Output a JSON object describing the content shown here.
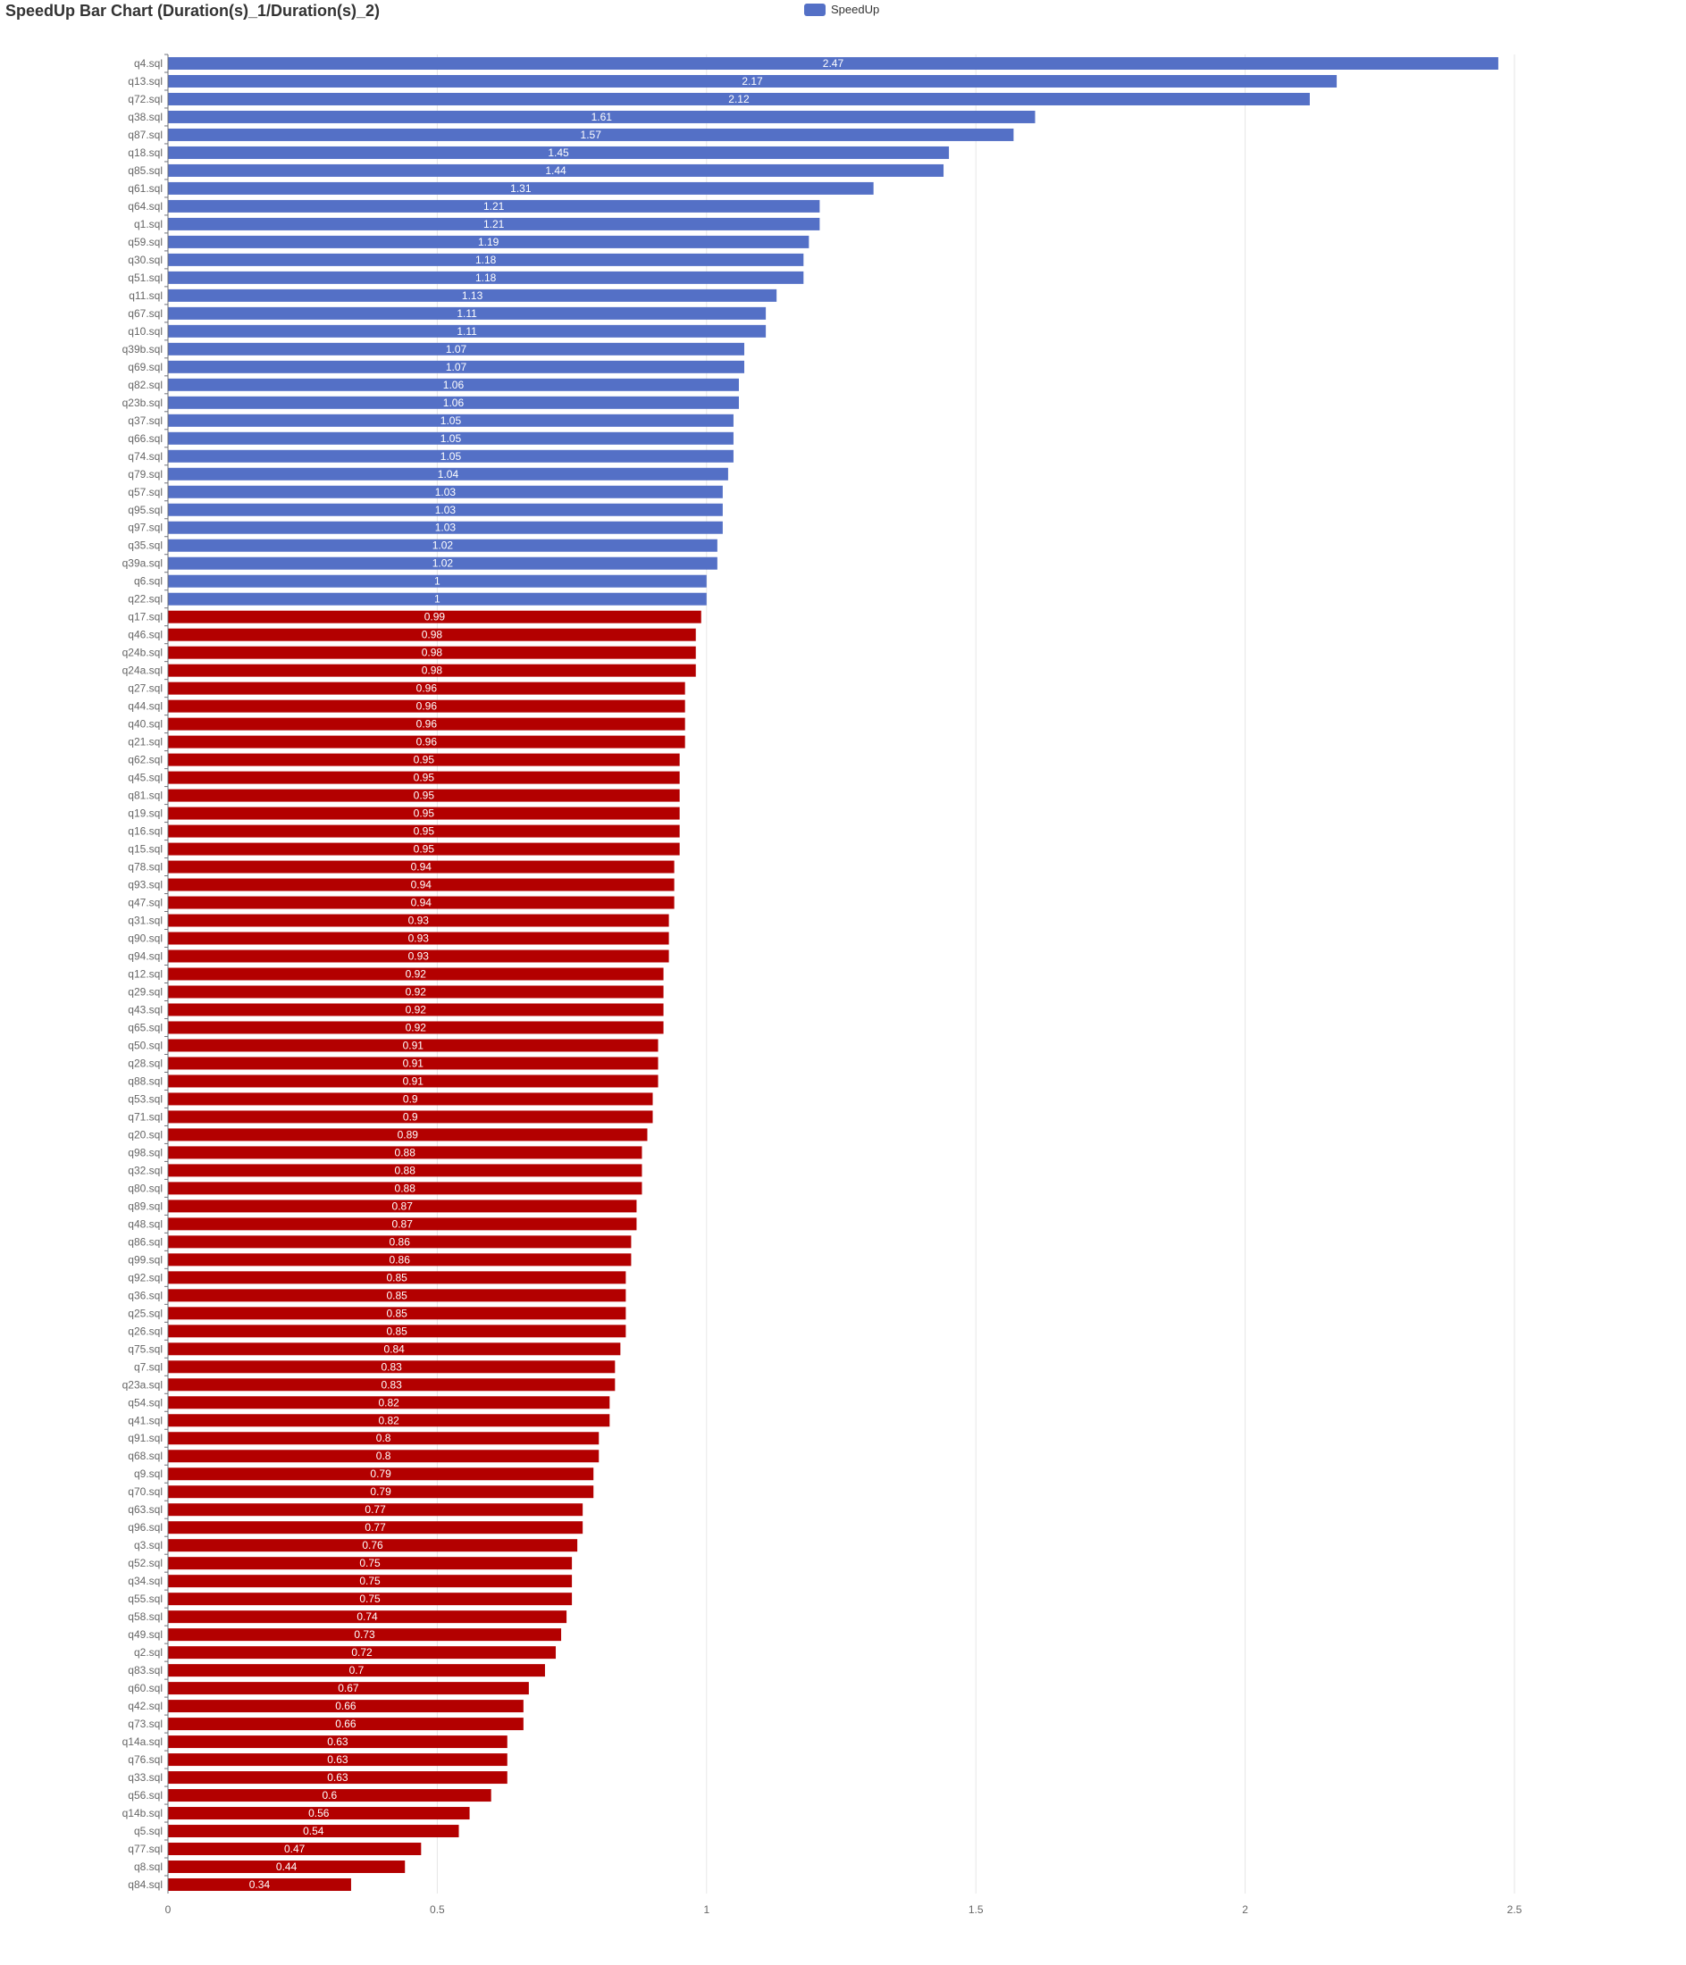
{
  "chart_data": {
    "type": "bar",
    "orientation": "horizontal",
    "title": "SpeedUp Bar Chart (Duration(s)_1/Duration(s)_2)",
    "legend": {
      "label": "SpeedUp",
      "color": "#5470c6",
      "placement": "top-center"
    },
    "color_above_1": "#5470c6",
    "color_below_1": "#b30000",
    "xlim": [
      0,
      2.5
    ],
    "xticks": [
      "0",
      "0.5",
      "1",
      "1.5",
      "2",
      "2.5"
    ],
    "xtick_values": [
      0,
      0.5,
      1,
      1.5,
      2,
      2.5
    ],
    "grid": "vertical",
    "categories": [
      "q4.sql",
      "q13.sql",
      "q72.sql",
      "q38.sql",
      "q87.sql",
      "q18.sql",
      "q85.sql",
      "q61.sql",
      "q64.sql",
      "q1.sql",
      "q59.sql",
      "q30.sql",
      "q51.sql",
      "q11.sql",
      "q67.sql",
      "q10.sql",
      "q39b.sql",
      "q69.sql",
      "q82.sql",
      "q23b.sql",
      "q37.sql",
      "q66.sql",
      "q74.sql",
      "q79.sql",
      "q57.sql",
      "q95.sql",
      "q97.sql",
      "q35.sql",
      "q39a.sql",
      "q6.sql",
      "q22.sql",
      "q17.sql",
      "q46.sql",
      "q24b.sql",
      "q24a.sql",
      "q27.sql",
      "q44.sql",
      "q40.sql",
      "q21.sql",
      "q62.sql",
      "q45.sql",
      "q81.sql",
      "q19.sql",
      "q16.sql",
      "q15.sql",
      "q78.sql",
      "q93.sql",
      "q47.sql",
      "q31.sql",
      "q90.sql",
      "q94.sql",
      "q12.sql",
      "q29.sql",
      "q43.sql",
      "q65.sql",
      "q50.sql",
      "q28.sql",
      "q88.sql",
      "q53.sql",
      "q71.sql",
      "q20.sql",
      "q98.sql",
      "q32.sql",
      "q80.sql",
      "q89.sql",
      "q48.sql",
      "q86.sql",
      "q99.sql",
      "q92.sql",
      "q36.sql",
      "q25.sql",
      "q26.sql",
      "q75.sql",
      "q7.sql",
      "q23a.sql",
      "q54.sql",
      "q41.sql",
      "q91.sql",
      "q68.sql",
      "q9.sql",
      "q70.sql",
      "q63.sql",
      "q96.sql",
      "q3.sql",
      "q52.sql",
      "q34.sql",
      "q55.sql",
      "q58.sql",
      "q49.sql",
      "q2.sql",
      "q83.sql",
      "q60.sql",
      "q42.sql",
      "q73.sql",
      "q14a.sql",
      "q76.sql",
      "q33.sql",
      "q56.sql",
      "q14b.sql",
      "q5.sql",
      "q77.sql",
      "q8.sql",
      "q84.sql"
    ],
    "values": [
      2.47,
      2.17,
      2.12,
      1.61,
      1.57,
      1.45,
      1.44,
      1.31,
      1.21,
      1.21,
      1.19,
      1.18,
      1.18,
      1.13,
      1.11,
      1.11,
      1.07,
      1.07,
      1.06,
      1.06,
      1.05,
      1.05,
      1.05,
      1.04,
      1.03,
      1.03,
      1.03,
      1.02,
      1.02,
      1,
      1,
      0.99,
      0.98,
      0.98,
      0.98,
      0.96,
      0.96,
      0.96,
      0.96,
      0.95,
      0.95,
      0.95,
      0.95,
      0.95,
      0.95,
      0.94,
      0.94,
      0.94,
      0.93,
      0.93,
      0.93,
      0.92,
      0.92,
      0.92,
      0.92,
      0.91,
      0.91,
      0.91,
      0.9,
      0.9,
      0.89,
      0.88,
      0.88,
      0.88,
      0.87,
      0.87,
      0.86,
      0.86,
      0.85,
      0.85,
      0.85,
      0.85,
      0.84,
      0.83,
      0.83,
      0.82,
      0.82,
      0.8,
      0.8,
      0.79,
      0.79,
      0.77,
      0.77,
      0.76,
      0.75,
      0.75,
      0.75,
      0.74,
      0.73,
      0.72,
      0.7,
      0.67,
      0.66,
      0.66,
      0.63,
      0.63,
      0.63,
      0.6,
      0.56,
      0.54,
      0.47,
      0.44,
      0.34
    ]
  }
}
